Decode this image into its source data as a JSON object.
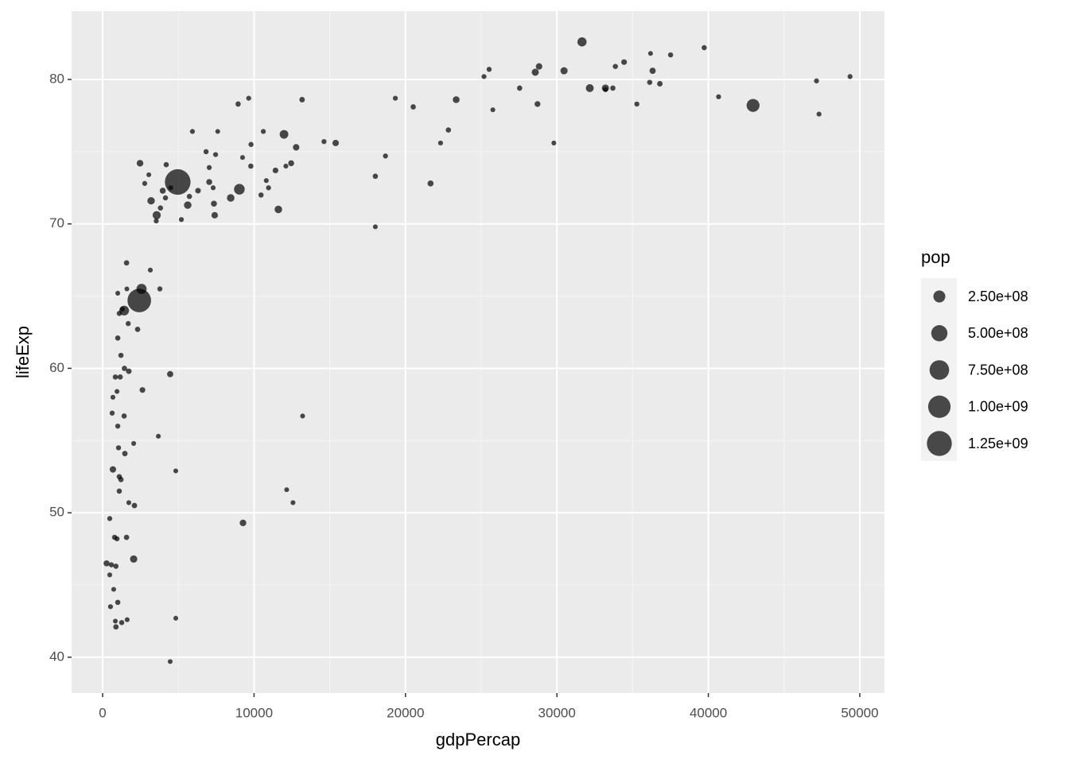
{
  "chart_data": {
    "type": "scatter",
    "x_label": "gdpPercap",
    "y_label": "lifeExp",
    "legend_title": "pop",
    "color": "#000000",
    "alpha": 0.7,
    "grid": true,
    "legend_position": "right",
    "xlim": [
      -2050,
      51630
    ],
    "ylim": [
      37.52,
      84.73
    ],
    "xticks": [
      0,
      10000,
      20000,
      30000,
      40000,
      50000
    ],
    "yticks": [
      40,
      50,
      60,
      70,
      80
    ],
    "size_legend": [
      {
        "value": 250000000,
        "label": "2.50e+08"
      },
      {
        "value": 500000000,
        "label": "5.00e+08"
      },
      {
        "value": 750000000,
        "label": "7.50e+08"
      },
      {
        "value": 1000000000,
        "label": "1.00e+09"
      },
      {
        "value": 1250000000,
        "label": "1.25e+09"
      }
    ],
    "x": [
      49357,
      47307,
      47143,
      42952,
      40676,
      39725,
      37506,
      36798,
      36319,
      36181,
      36126,
      35278,
      34435,
      33860,
      33693,
      33207,
      33203,
      32170,
      31656,
      30470,
      29796,
      28821,
      28718,
      28570,
      27538,
      25768,
      25523,
      25185,
      23348,
      22833,
      22316,
      21655,
      20510,
      19329,
      18678,
      18009,
      18009,
      15389,
      14619,
      13206,
      13172,
      12779,
      12570,
      12451,
      12154,
      12100,
      11978,
      11606,
      11415,
      10956,
      10808,
      10611,
      10461,
      9786,
      9645,
      8948,
      9800,
      9240,
      9269,
      9030,
      8458,
      7600,
      7460,
      7300,
      7350,
      7400,
      7040,
      7040,
      6830,
      6300,
      5930,
      5730,
      5620,
      5200,
      4959,
      4830,
      4830,
      4460,
      4460,
      4500,
      4200,
      4150,
      3970,
      3780,
      3820,
      3570,
      3540,
      3680,
      3200,
      3050,
      3150,
      2780,
      2630,
      2470,
      2420,
      2570,
      2310,
      2050,
      2100,
      2050,
      1730,
      1690,
      1580,
      1600,
      1420,
      1440,
      1580,
      1470,
      1420,
      1620,
      1730,
      1210,
      1100,
      1100,
      1050,
      1210,
      1160,
      1100,
      1000,
      1000,
      1000,
      950,
      840,
      1310,
      880,
      880,
      1000,
      1260,
      840,
      470,
      680,
      680,
      630,
      470,
      520,
      260,
      790,
      950,
      730,
      580
    ],
    "y": [
      80.2,
      77.6,
      79.9,
      78.2,
      78.8,
      82.2,
      81.7,
      79.7,
      80.6,
      81.8,
      79.8,
      78.3,
      81.2,
      80.9,
      79.4,
      79.3,
      79.4,
      79.4,
      82.6,
      80.6,
      75.6,
      80.9,
      78.3,
      80.5,
      79.4,
      77.9,
      80.7,
      80.2,
      78.6,
      76.5,
      75.6,
      72.8,
      78.1,
      78.7,
      74.7,
      73.3,
      69.8,
      75.6,
      75.7,
      56.7,
      78.6,
      75.3,
      50.7,
      74.2,
      51.6,
      74.0,
      76.2,
      71.0,
      73.7,
      72.5,
      73.0,
      76.4,
      72.0,
      74.0,
      78.7,
      78.3,
      75.5,
      74.6,
      49.3,
      72.4,
      71.8,
      76.4,
      74.8,
      72.5,
      71.4,
      70.6,
      72.9,
      73.9,
      75.0,
      72.3,
      76.4,
      71.9,
      71.3,
      70.3,
      72.9,
      52.9,
      42.7,
      59.6,
      39.7,
      72.5,
      74.1,
      71.8,
      72.3,
      65.5,
      71.1,
      70.6,
      70.2,
      55.3,
      71.6,
      73.4,
      66.8,
      72.8,
      58.5,
      74.2,
      64.7,
      65.5,
      62.7,
      46.8,
      50.5,
      54.8,
      59.8,
      63.1,
      67.3,
      65.5,
      64.0,
      60.0,
      48.3,
      54.1,
      56.7,
      42.6,
      50.7,
      52.3,
      52.5,
      51.5,
      54.5,
      60.9,
      59.4,
      63.8,
      65.2,
      62.1,
      56.0,
      58.4,
      59.4,
      64.1,
      42.1,
      46.3,
      43.8,
      42.4,
      42.5,
      49.6,
      53.0,
      58.0,
      56.9,
      45.7,
      43.5,
      46.5,
      48.3,
      48.2,
      44.7,
      46.4
    ],
    "size": [
      4600000,
      2500000,
      4500000,
      301000000,
      4100000,
      7000000,
      7500000,
      16600000,
      33000000,
      300000,
      8200000,
      5500000,
      20000000,
      9000000,
      10400000,
      5200000,
      60000000,
      82000000,
      127000000,
      61000000,
      700000,
      40000000,
      23000000,
      58000000,
      10700000,
      2000000,
      6400000,
      4100000,
      49000000,
      10000000,
      3200000,
      27000000,
      10600000,
      4000000,
      5400000,
      10000000,
      1000000,
      38500000,
      4500000,
      1500000,
      16000000,
      40000000,
      1600000,
      24700000,
      550000,
      2300000,
      108000000,
      71000000,
      20000000,
      5500000,
      2300000,
      3400000,
      9000000,
      9400000,
      4100000,
      11400000,
      7000000,
      1000000,
      44000000,
      190000000,
      71000000,
      300000,
      4000000,
      3000000,
      28000000,
      40000000,
      27000000,
      4500000,
      8000000,
      20000000,
      3000000,
      10000000,
      69000000,
      4000000,
      1318000000,
      1200000,
      1500000,
      33000000,
      500000,
      1000000,
      10000000,
      8000000,
      28000000,
      7000000,
      10000000,
      92000000,
      3000000,
      2000000,
      67000000,
      1000000,
      3000000,
      4500000,
      20000000,
      44000000,
      1110000000,
      169000000,
      12000000,
      64000000,
      14000000,
      800000,
      17000000,
      6000000,
      13000000,
      500000,
      150000000,
      12000000,
      12000000,
      14000000,
      10000000,
      1300000,
      2000000,
      12000000,
      10000000,
      10000000,
      7000000,
      9000000,
      10000000,
      8000000,
      600000,
      10000000,
      6000000,
      1500000,
      9000000,
      1000000,
      12000000,
      9000000,
      10000000,
      8000000,
      1500000,
      5000000,
      40000000,
      1500000,
      6000000,
      1500000,
      4000000,
      30000000,
      9000000,
      6000000,
      1500000,
      8000000
    ]
  }
}
